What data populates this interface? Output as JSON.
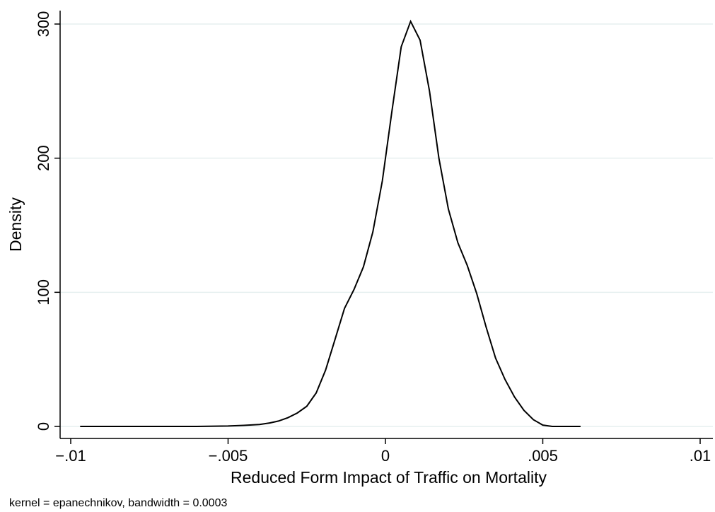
{
  "chart_data": {
    "type": "line",
    "xlabel": "Reduced Form Impact of Traffic on Mortality",
    "ylabel": "Density",
    "note": "kernel = epanechnikov, bandwidth = 0.0003",
    "xlim": [
      -0.01,
      0.01
    ],
    "ylim": [
      0,
      300
    ],
    "x_ticks": [
      {
        "value": -0.01,
        "label": "−.01"
      },
      {
        "value": -0.005,
        "label": "−.005"
      },
      {
        "value": 0,
        "label": "0"
      },
      {
        "value": 0.005,
        "label": ".005"
      },
      {
        "value": 0.01,
        "label": ".01"
      }
    ],
    "y_ticks": [
      {
        "value": 0,
        "label": "0"
      },
      {
        "value": 100,
        "label": "100"
      },
      {
        "value": 200,
        "label": "200"
      },
      {
        "value": 300,
        "label": "300"
      }
    ],
    "grid": "horizontal",
    "line_color": "#000000",
    "grid_color": "#e6efef",
    "series": [
      {
        "x": [
          -0.0097,
          -0.009,
          -0.008,
          -0.007,
          -0.006,
          -0.005,
          -0.0045,
          -0.004,
          -0.0037,
          -0.0034,
          -0.0031,
          -0.0028,
          -0.0025,
          -0.0022,
          -0.0019,
          -0.0016,
          -0.0013,
          -0.001,
          -0.0007,
          -0.0004,
          -0.0001,
          0.0002,
          0.0005,
          0.0008,
          0.0011,
          0.0014,
          0.0017,
          0.002,
          0.0023,
          0.0026,
          0.0029,
          0.0032,
          0.0035,
          0.0038,
          0.0041,
          0.0044,
          0.0047,
          0.005,
          0.0053,
          0.0056,
          0.0059,
          0.0062
        ],
        "y": [
          0,
          0,
          0,
          0,
          0,
          0.3,
          0.8,
          1.5,
          2.5,
          4,
          6.5,
          10,
          15,
          25,
          42,
          65,
          88,
          102,
          119,
          145,
          183,
          234,
          283,
          302,
          288,
          250,
          200,
          162,
          137,
          120,
          99,
          74,
          51,
          35,
          22,
          12,
          5,
          1,
          0,
          0,
          0,
          0
        ]
      }
    ]
  }
}
